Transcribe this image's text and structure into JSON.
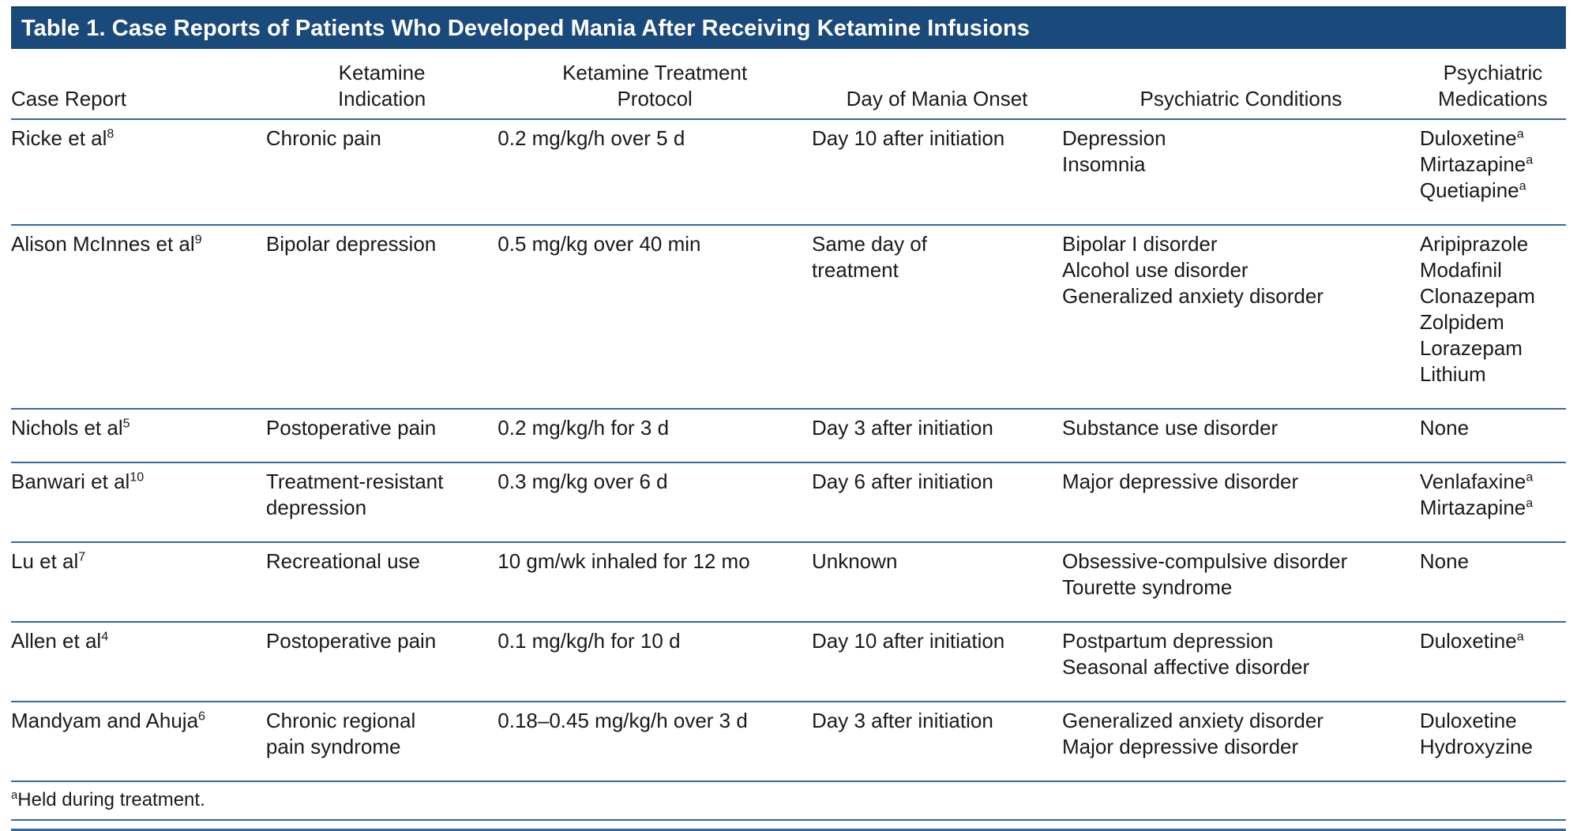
{
  "title": "Table 1. Case Reports of Patients Who Developed Mania After Receiving Ketamine Infusions",
  "colors": {
    "title_bar_bg": "#1A4A7C",
    "title_text": "#FFFFFF",
    "rule": "#35689B",
    "body_text": "#1A1A1A"
  },
  "columns": [
    {
      "key": "case_report",
      "lines": [
        "Case Report"
      ]
    },
    {
      "key": "ketamine_indication",
      "lines": [
        "Ketamine",
        "Indication"
      ]
    },
    {
      "key": "treatment_protocol",
      "lines": [
        "Ketamine Treatment",
        "Protocol"
      ]
    },
    {
      "key": "day_of_mania_onset",
      "lines": [
        "Day of Mania Onset"
      ]
    },
    {
      "key": "psychiatric_conditions",
      "lines": [
        "Psychiatric Conditions"
      ]
    },
    {
      "key": "psychiatric_medications",
      "lines": [
        "Psychiatric",
        "Medications"
      ]
    }
  ],
  "rows": [
    {
      "case_report": [
        {
          "text": "Ricke et al",
          "sup": "8"
        }
      ],
      "ketamine_indication": [
        {
          "text": "Chronic pain"
        }
      ],
      "treatment_protocol": [
        {
          "text": "0.2 mg/kg/h over 5 d"
        }
      ],
      "day_of_mania_onset": [
        {
          "text": "Day 10 after initiation"
        }
      ],
      "psychiatric_conditions": [
        {
          "text": "Depression"
        },
        {
          "text": "Insomnia"
        }
      ],
      "psychiatric_medications": [
        {
          "text": "Duloxetine",
          "sup": "a"
        },
        {
          "text": "Mirtazapine",
          "sup": "a"
        },
        {
          "text": "Quetiapine",
          "sup": "a"
        }
      ]
    },
    {
      "case_report": [
        {
          "text": "Alison McInnes et al",
          "sup": "9"
        }
      ],
      "ketamine_indication": [
        {
          "text": "Bipolar depression"
        }
      ],
      "treatment_protocol": [
        {
          "text": "0.5 mg/kg over 40 min"
        }
      ],
      "day_of_mania_onset": [
        {
          "text": "Same day of"
        },
        {
          "text": "treatment"
        }
      ],
      "psychiatric_conditions": [
        {
          "text": "Bipolar I disorder"
        },
        {
          "text": "Alcohol use disorder"
        },
        {
          "text": "Generalized anxiety disorder"
        }
      ],
      "psychiatric_medications": [
        {
          "text": "Aripiprazole"
        },
        {
          "text": "Modafinil"
        },
        {
          "text": "Clonazepam"
        },
        {
          "text": "Zolpidem"
        },
        {
          "text": "Lorazepam"
        },
        {
          "text": "Lithium"
        }
      ]
    },
    {
      "case_report": [
        {
          "text": "Nichols et al",
          "sup": "5"
        }
      ],
      "ketamine_indication": [
        {
          "text": "Postoperative pain"
        }
      ],
      "treatment_protocol": [
        {
          "text": "0.2 mg/kg/h for 3 d"
        }
      ],
      "day_of_mania_onset": [
        {
          "text": "Day 3 after initiation"
        }
      ],
      "psychiatric_conditions": [
        {
          "text": "Substance use disorder"
        }
      ],
      "psychiatric_medications": [
        {
          "text": "None"
        }
      ]
    },
    {
      "case_report": [
        {
          "text": "Banwari et al",
          "sup": "10"
        }
      ],
      "ketamine_indication": [
        {
          "text": "Treatment-resistant"
        },
        {
          "text": "depression"
        }
      ],
      "treatment_protocol": [
        {
          "text": "0.3 mg/kg over 6 d"
        }
      ],
      "day_of_mania_onset": [
        {
          "text": "Day 6 after initiation"
        }
      ],
      "psychiatric_conditions": [
        {
          "text": "Major depressive disorder"
        }
      ],
      "psychiatric_medications": [
        {
          "text": "Venlafaxine",
          "sup": "a"
        },
        {
          "text": "Mirtazapine",
          "sup": "a"
        }
      ]
    },
    {
      "case_report": [
        {
          "text": "Lu et al",
          "sup": "7"
        }
      ],
      "ketamine_indication": [
        {
          "text": "Recreational use"
        }
      ],
      "treatment_protocol": [
        {
          "text": "10 gm/wk inhaled for 12 mo"
        }
      ],
      "day_of_mania_onset": [
        {
          "text": "Unknown"
        }
      ],
      "psychiatric_conditions": [
        {
          "text": "Obsessive-compulsive disorder"
        },
        {
          "text": "Tourette syndrome"
        }
      ],
      "psychiatric_medications": [
        {
          "text": "None"
        }
      ]
    },
    {
      "case_report": [
        {
          "text": "Allen et al",
          "sup": "4"
        }
      ],
      "ketamine_indication": [
        {
          "text": "Postoperative pain"
        }
      ],
      "treatment_protocol": [
        {
          "text": "0.1 mg/kg/h for 10 d"
        }
      ],
      "day_of_mania_onset": [
        {
          "text": "Day 10 after initiation"
        }
      ],
      "psychiatric_conditions": [
        {
          "text": "Postpartum depression"
        },
        {
          "text": "Seasonal affective disorder"
        }
      ],
      "psychiatric_medications": [
        {
          "text": "Duloxetine",
          "sup": "a"
        }
      ]
    },
    {
      "case_report": [
        {
          "text": "Mandyam and Ahuja",
          "sup": "6"
        }
      ],
      "ketamine_indication": [
        {
          "text": "Chronic regional"
        },
        {
          "text": "pain syndrome"
        }
      ],
      "treatment_protocol": [
        {
          "text": "0.18–0.45 mg/kg/h over 3 d"
        }
      ],
      "day_of_mania_onset": [
        {
          "text": "Day 3 after initiation"
        }
      ],
      "psychiatric_conditions": [
        {
          "text": "Generalized anxiety disorder"
        },
        {
          "text": "Major depressive disorder"
        }
      ],
      "psychiatric_medications": [
        {
          "text": "Duloxetine"
        },
        {
          "text": "Hydroxyzine"
        }
      ]
    }
  ],
  "footnote": {
    "sup": "a",
    "text": "Held during treatment."
  }
}
